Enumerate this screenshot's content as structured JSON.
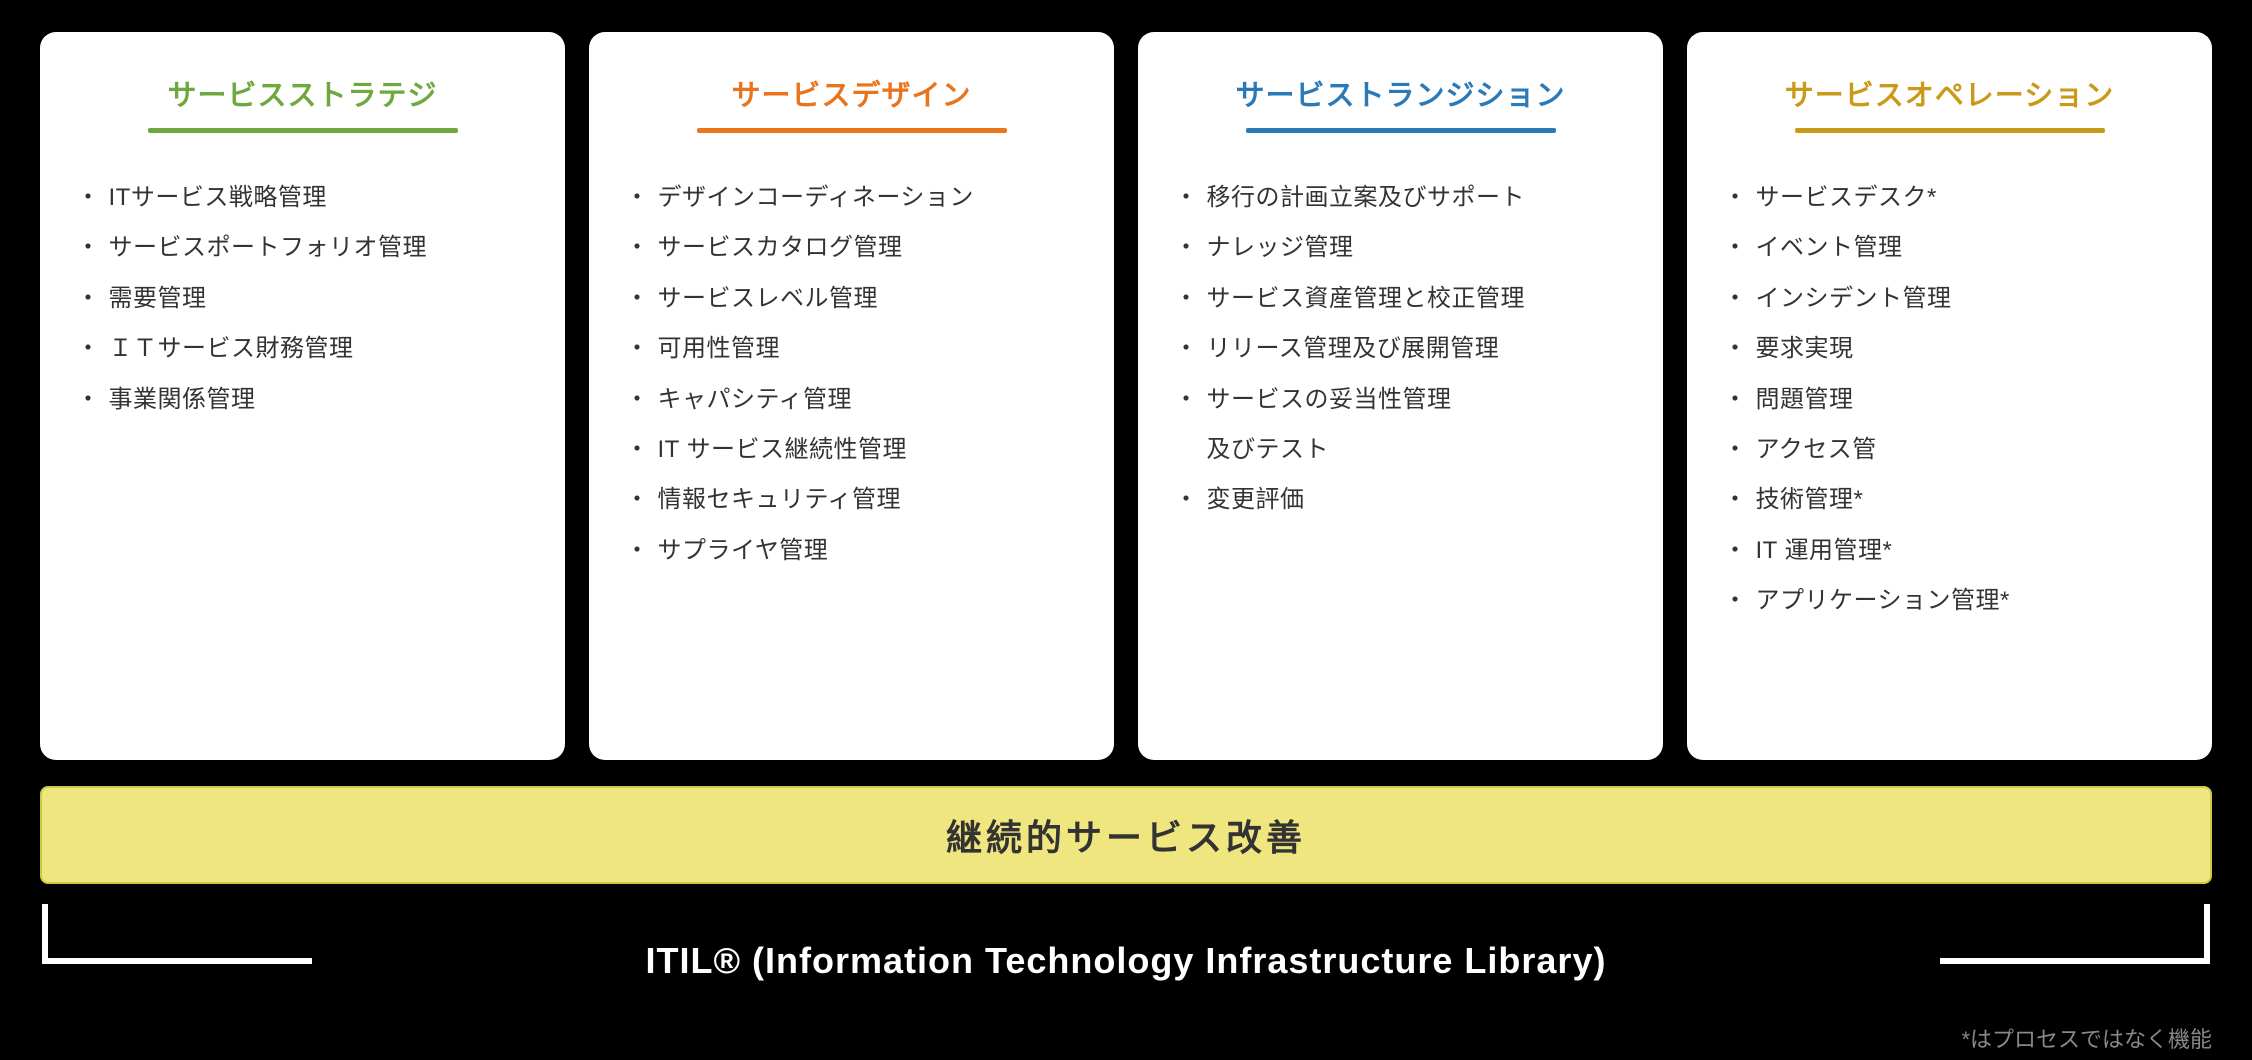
{
  "diagram": {
    "type": "infographic",
    "background_color": "#000000",
    "card_background": "#ffffff",
    "card_border_radius": 16,
    "text_color": "#333333",
    "columns": [
      {
        "title": "サービスストラテジ",
        "accent_color": "#6fa83e",
        "items": [
          " ITサービス戦略管理",
          "サービスポートフォリオ管理",
          "需要管理",
          "ＩＴサービス財務管理",
          "事業関係管理"
        ]
      },
      {
        "title": "サービスデザイン",
        "accent_color": "#e8741e",
        "items": [
          "デザインコーディネーション",
          "サービスカタログ管理",
          "サービスレベル管理",
          "可用性管理",
          "キャパシティ管理",
          " IT サービス継続性管理",
          "情報セキュリティ管理",
          "サプライヤ管理"
        ]
      },
      {
        "title": "サービストランジション",
        "accent_color": "#2a7ab8",
        "items": [
          "移行の計画立案及びサポート",
          "ナレッジ管理",
          "サービス資産管理と校正管理",
          "リリース管理及び展開管理",
          "サービスの妥当性管理\n及びテスト",
          "変更評価"
        ]
      },
      {
        "title": "サービスオペレーション",
        "accent_color": "#c99a1a",
        "items": [
          "サービスデスク*",
          "イベント管理",
          "インシデント管理",
          "要求実現",
          "問題管理",
          "アクセス管",
          "技術管理*",
          " IT 運用管理*",
          "アプリケーション管理*"
        ]
      }
    ],
    "csi": {
      "label": "継続的サービス改善",
      "background_color": "#f0e680",
      "border_color": "#c9c94a",
      "fontsize": 36
    },
    "bracket": {
      "label": "ITIL® (Information Technology Infrastructure Library)",
      "color": "#ffffff",
      "line_width": 6,
      "fontsize": 36
    },
    "footnote": {
      "text": "*はプロセスではなく機能",
      "color": "#888888",
      "fontsize": 22
    },
    "title_fontsize": 29,
    "item_fontsize": 24,
    "underline_width": 310,
    "underline_height": 5
  }
}
